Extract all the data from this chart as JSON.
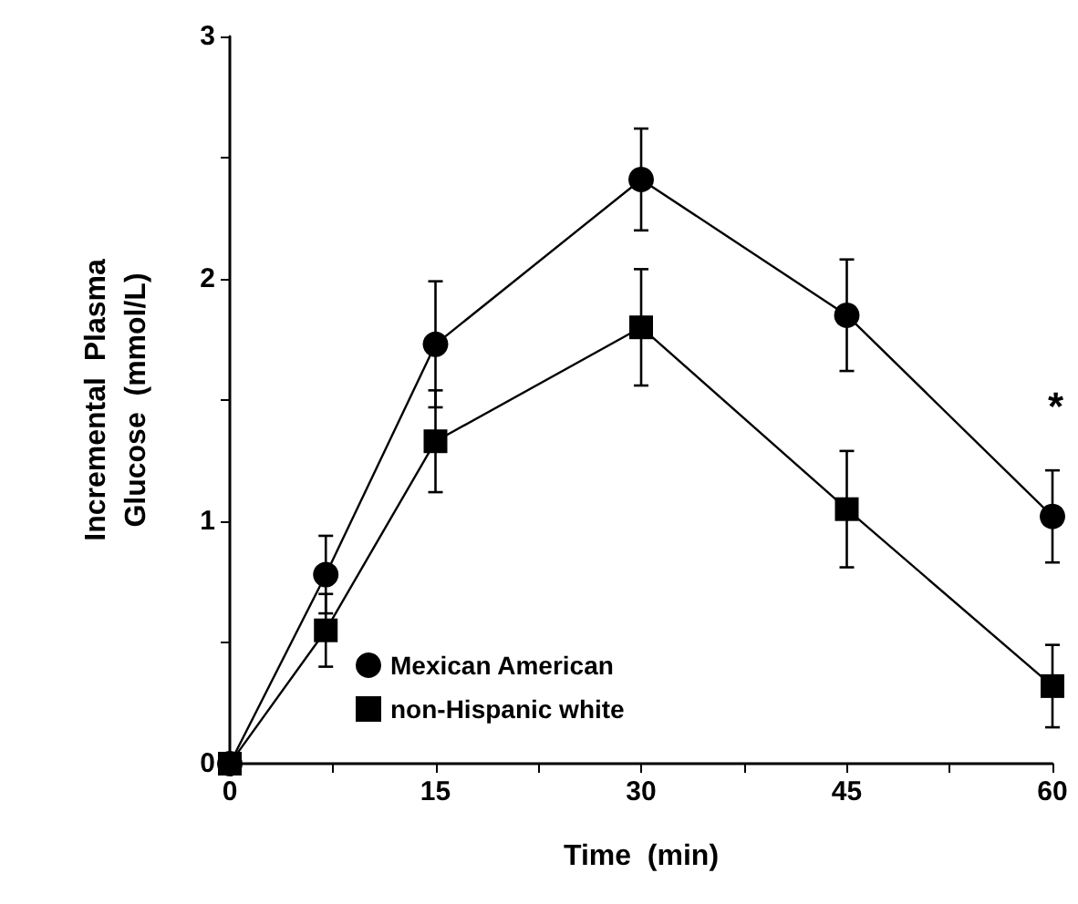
{
  "chart_data": {
    "type": "line",
    "xlabel": "Time  (min)",
    "ylabel": "Incremental  Plasma\nGlucose  (mmol/L)",
    "x": [
      0,
      7,
      15,
      30,
      45,
      60
    ],
    "series": [
      {
        "name": "Mexican American",
        "color": "#000000",
        "marker": "circle",
        "values": [
          0,
          0.78,
          1.73,
          2.41,
          1.85,
          1.02
        ],
        "errors": [
          null,
          0.16,
          0.26,
          0.21,
          0.23,
          0.19
        ]
      },
      {
        "name": "non-Hispanic white",
        "color": "#000000",
        "marker": "square",
        "values": [
          0,
          0.55,
          1.33,
          1.8,
          1.05,
          0.32
        ],
        "errors": [
          null,
          0.15,
          0.21,
          0.24,
          0.24,
          0.17
        ]
      }
    ],
    "xlim": [
      0,
      60
    ],
    "xticks": [
      0,
      {
        "value": 7.5,
        "label": null
      },
      15,
      {
        "value": 22.5,
        "label": null
      },
      30,
      {
        "value": 37.5,
        "label": null
      },
      45,
      {
        "value": 52.5,
        "label": null
      },
      60
    ],
    "ylim": [
      0,
      3
    ],
    "yticks": [
      0,
      {
        "value": 0.5,
        "label": null
      },
      1,
      {
        "value": 1.5,
        "label": null
      },
      2,
      {
        "value": 2.5,
        "label": null
      },
      3
    ],
    "annotations": [
      "*"
    ],
    "grid": false,
    "legend": "bottom",
    "line_style": "solid"
  }
}
